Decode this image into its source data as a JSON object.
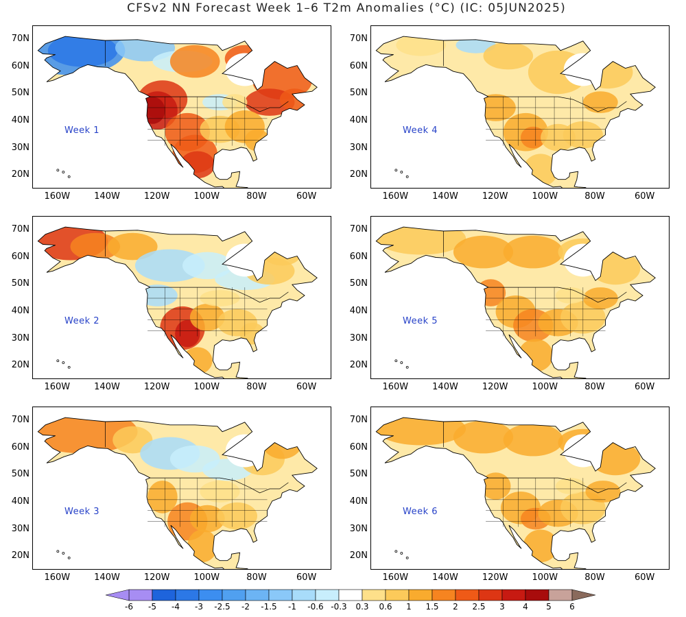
{
  "title": "CFSv2 NN Forecast Week 1–6 T2m Anomalies (°C) (IC: 05JUN2025)",
  "lat_labels": [
    "70N",
    "60N",
    "50N",
    "40N",
    "30N",
    "20N"
  ],
  "lon_labels": [
    "160W",
    "140W",
    "120W",
    "100W",
    "80W",
    "60W"
  ],
  "panels": [
    {
      "label": "Week 1",
      "pattern": "week1"
    },
    {
      "label": "Week 4",
      "pattern": "week4"
    },
    {
      "label": "Week 2",
      "pattern": "week2"
    },
    {
      "label": "Week 5",
      "pattern": "week5"
    },
    {
      "label": "Week 3",
      "pattern": "week3"
    },
    {
      "label": "Week 6",
      "pattern": "week6"
    }
  ],
  "colorbar": {
    "labels": [
      "-6",
      "-5",
      "-4",
      "-3",
      "-2.5",
      "-2",
      "-1.5",
      "-1",
      "-0.6",
      "-0.3",
      "0.3",
      "0.6",
      "1",
      "1.5",
      "2",
      "2.5",
      "3",
      "4",
      "5",
      "6"
    ],
    "colors": [
      "#a78df3",
      "#1e64dc",
      "#2c78e6",
      "#3c8ef0",
      "#50a0f0",
      "#6cb4f4",
      "#8ac8f8",
      "#a8dcfa",
      "#c8eefc",
      "#ffffff",
      "#fee08a",
      "#fcca5a",
      "#f9ab2e",
      "#f68420",
      "#ef5a17",
      "#dd3614",
      "#c71a12",
      "#a80c0c",
      "#c8a29a"
    ],
    "low_color": "#a78df3",
    "high_color": "#8a6a5c"
  }
}
